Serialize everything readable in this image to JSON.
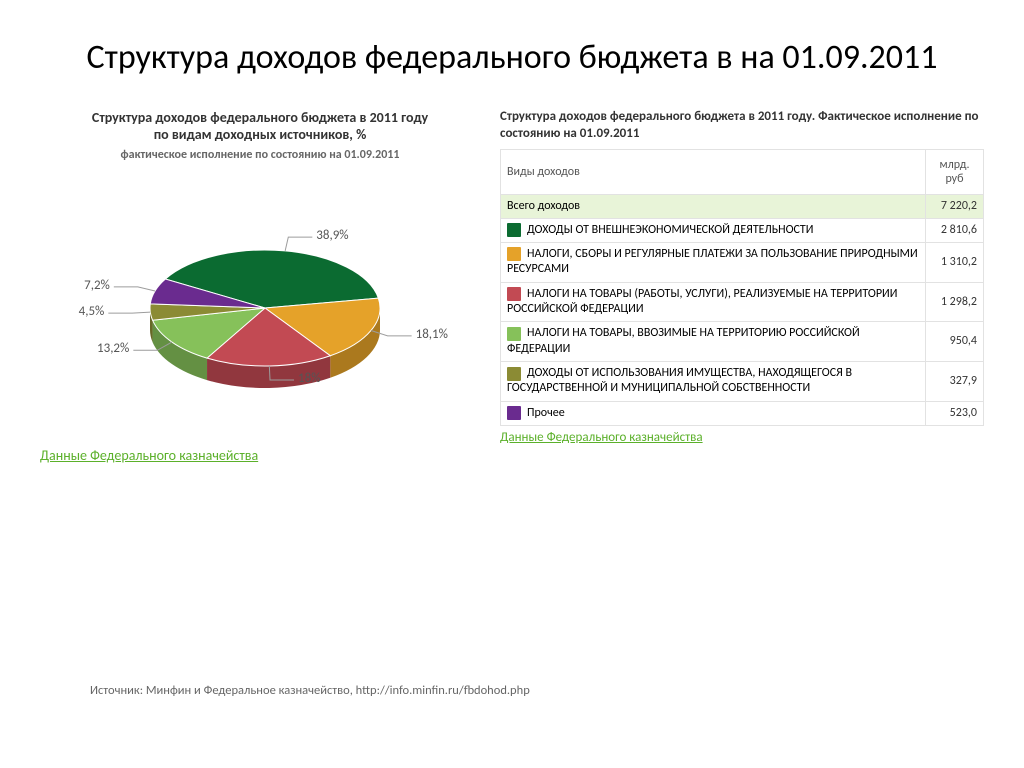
{
  "page": {
    "title": "Структура доходов федерального бюджета в на 01.09.2011"
  },
  "pie": {
    "title": "Структура доходов федерального бюджета в 2011 году  по видам доходных источников, %",
    "subtitle": "фактическое исполнение по состоянию на 01.09.2011",
    "type": "pie-3d",
    "background_color": "#ffffff",
    "tilt_deg": 55,
    "side_darken": 0.25,
    "label_fontsize": 13,
    "label_color": "#555555",
    "leader_color": "#9c9c9c",
    "slices": [
      {
        "label": "38,9%",
        "value": 38.9,
        "color": "#0b6b31"
      },
      {
        "label": "18,1%",
        "value": 18.1,
        "color": "#e5a229"
      },
      {
        "label": "18%",
        "value": 18.0,
        "color": "#c24a53"
      },
      {
        "label": "13,2%",
        "value": 13.2,
        "color": "#86c15a"
      },
      {
        "label": "4,5%",
        "value": 4.5,
        "color": "#8b8b34"
      },
      {
        "label": "7,2%",
        "value": 7.2,
        "color": "#6a2b8f"
      }
    ],
    "source_link": "Данные Федерального казначейства"
  },
  "table": {
    "title": "Структура доходов федерального бюджета в 2011 году. Фактическое исполнение по состоянию на 01.09.2011",
    "columns": [
      "Виды доходов",
      "млрд. руб"
    ],
    "col_widths": [
      "auto",
      "58px"
    ],
    "header_bg": "#ffffff",
    "border_color": "#e2e2e2",
    "total_row_bg": "#e8f4d8",
    "fontsize": 12,
    "total": {
      "label": "Всего доходов",
      "value": "7 220,2"
    },
    "rows": [
      {
        "swatch": "#0b6b31",
        "label": "ДОХОДЫ ОТ ВНЕШНЕЭКОНОМИЧЕСКОЙ ДЕЯТЕЛЬНОСТИ",
        "value": "2 810,6"
      },
      {
        "swatch": "#e5a229",
        "label": "НАЛОГИ, СБОРЫ И РЕГУЛЯРНЫЕ ПЛАТЕЖИ ЗА ПОЛЬЗОВАНИЕ ПРИРОДНЫМИ РЕСУРСАМИ",
        "value": "1 310,2"
      },
      {
        "swatch": "#c24a53",
        "label": "НАЛОГИ НА ТОВАРЫ (РАБОТЫ, УСЛУГИ), РЕАЛИЗУЕМЫЕ НА ТЕРРИТОРИИ РОССИЙСКОЙ ФЕДЕРАЦИИ",
        "value": "1 298,2"
      },
      {
        "swatch": "#86c15a",
        "label": "НАЛОГИ НА ТОВАРЫ, ВВОЗИМЫЕ НА ТЕРРИТОРИЮ РОССИЙСКОЙ ФЕДЕРАЦИИ",
        "value": "950,4"
      },
      {
        "swatch": "#8b8b34",
        "label": "ДОХОДЫ ОТ ИСПОЛЬЗОВАНИЯ ИМУЩЕСТВА, НАХОДЯЩЕГОСЯ В ГОСУДАРСТВЕННОЙ И МУНИЦИПАЛЬНОЙ СОБСТВЕННОСТИ",
        "value": "327,9"
      },
      {
        "swatch": "#6a2b8f",
        "label": "Прочее",
        "value": "523,0"
      }
    ],
    "source_link": "Данные Федерального казначейства"
  },
  "footer": {
    "text": "Источник: Минфин и Федеральное казначейство, http://info.minfin.ru/fbdohod.php"
  }
}
